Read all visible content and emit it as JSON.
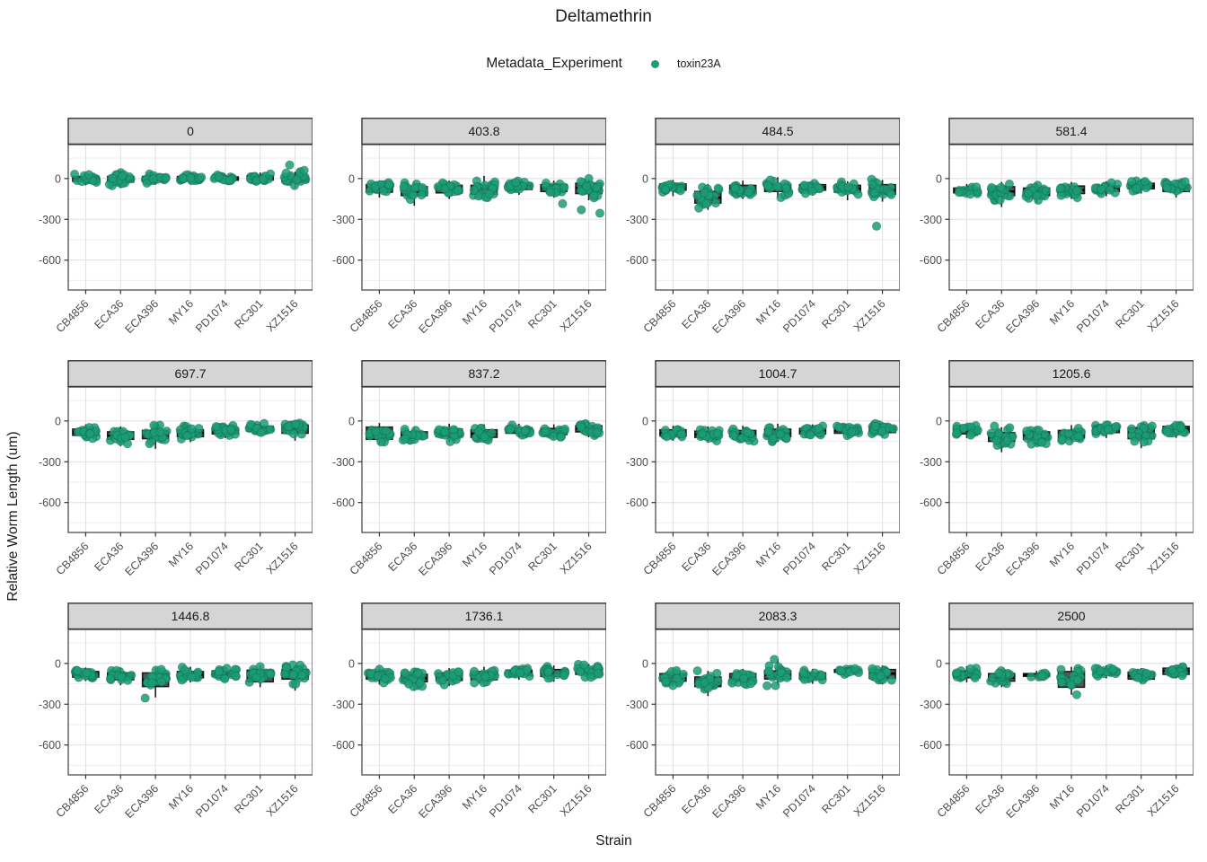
{
  "chart_data": {
    "type": "boxplot-jitter-facets",
    "title": "Deltamethrin",
    "xlabel": "Strain",
    "ylabel": "Relative Worm Length (um)",
    "legend": {
      "title": "Metadata_Experiment",
      "items": [
        {
          "label": "toxin23A",
          "color": "#1b9e77"
        }
      ]
    },
    "strains": [
      "CB4856",
      "ECA36",
      "ECA396",
      "MY16",
      "PD1074",
      "RC301",
      "XZ1516"
    ],
    "yticks": [
      0,
      -300,
      -600
    ],
    "y_minor_step": 150,
    "ylim": [
      250,
      -820
    ],
    "grid": "on",
    "legend_position": "top",
    "group_format": "[median, q1, q3, whisker_lo, whisker_hi, n_points]",
    "facets": [
      {
        "label": "0",
        "groups": [
          [
            0,
            -20,
            15,
            -50,
            35,
            22
          ],
          [
            -5,
            -25,
            15,
            -70,
            40,
            22
          ],
          [
            0,
            -15,
            15,
            -45,
            35,
            20
          ],
          [
            0,
            -15,
            15,
            -40,
            40,
            22
          ],
          [
            0,
            -12,
            12,
            -35,
            30,
            20
          ],
          [
            5,
            -10,
            20,
            -30,
            45,
            20
          ],
          [
            -5,
            -25,
            10,
            -70,
            50,
            22
          ]
        ],
        "outliers": {
          "6": [
            100,
            60
          ]
        }
      },
      {
        "label": "403.8",
        "groups": [
          [
            -70,
            -100,
            -45,
            -140,
            -15,
            20
          ],
          [
            -95,
            -125,
            -60,
            -200,
            -25,
            20
          ],
          [
            -75,
            -105,
            -50,
            -150,
            -15,
            20
          ],
          [
            -80,
            -115,
            -50,
            -160,
            20,
            22
          ],
          [
            -55,
            -80,
            -35,
            -120,
            -10,
            18
          ],
          [
            -70,
            -95,
            -45,
            -140,
            -15,
            20
          ],
          [
            -70,
            -110,
            -35,
            -160,
            -5,
            22
          ]
        ],
        "outliers": {
          "5": [
            -185
          ],
          "6": [
            -230,
            -255
          ]
        }
      },
      {
        "label": "484.5",
        "groups": [
          [
            -60,
            -85,
            -40,
            -130,
            -10,
            20
          ],
          [
            -140,
            -180,
            -95,
            -230,
            -40,
            22
          ],
          [
            -80,
            -105,
            -50,
            -150,
            -15,
            22
          ],
          [
            -70,
            -95,
            -45,
            -140,
            10,
            20
          ],
          [
            -65,
            -85,
            -45,
            -125,
            -15,
            20
          ],
          [
            -75,
            -100,
            -50,
            -160,
            -20,
            18
          ],
          [
            -80,
            -115,
            -45,
            -170,
            -10,
            22
          ]
        ],
        "outliers": {
          "6": [
            -350
          ]
        }
      },
      {
        "label": "581.4",
        "groups": [
          [
            -90,
            -105,
            -70,
            -130,
            -40,
            18
          ],
          [
            -95,
            -125,
            -60,
            -210,
            -25,
            22
          ],
          [
            -100,
            -125,
            -70,
            -180,
            -30,
            22
          ],
          [
            -85,
            -110,
            -55,
            -150,
            -25,
            20
          ],
          [
            -75,
            -95,
            -55,
            -130,
            -20,
            20
          ],
          [
            -55,
            -75,
            -35,
            -110,
            -5,
            20
          ],
          [
            -70,
            -95,
            -45,
            -140,
            -10,
            20
          ]
        ],
        "outliers": {}
      },
      {
        "label": "697.7",
        "groups": [
          [
            -85,
            -105,
            -60,
            -140,
            -25,
            20
          ],
          [
            -110,
            -135,
            -80,
            -185,
            -40,
            20
          ],
          [
            -100,
            -130,
            -70,
            -205,
            -30,
            22
          ],
          [
            -90,
            -115,
            -65,
            -155,
            -30,
            20
          ],
          [
            -75,
            -95,
            -55,
            -125,
            -20,
            20
          ],
          [
            -55,
            -75,
            -40,
            -110,
            -10,
            18
          ],
          [
            -55,
            -90,
            -30,
            -145,
            -5,
            22
          ]
        ],
        "outliers": {}
      },
      {
        "label": "837.2",
        "groups": [
          [
            -85,
            -135,
            -45,
            -175,
            -15,
            20
          ],
          [
            -105,
            -125,
            -80,
            -165,
            -45,
            18
          ],
          [
            -90,
            -115,
            -60,
            -155,
            -20,
            20
          ],
          [
            -95,
            -120,
            -65,
            -160,
            -25,
            20
          ],
          [
            -70,
            -90,
            -50,
            -120,
            -20,
            18
          ],
          [
            -80,
            -100,
            -55,
            -135,
            -25,
            20
          ],
          [
            -55,
            -80,
            -35,
            -120,
            -5,
            20
          ]
        ],
        "outliers": {}
      },
      {
        "label": "1004.7",
        "groups": [
          [
            -90,
            -110,
            -65,
            -145,
            -35,
            20
          ],
          [
            -100,
            -120,
            -75,
            -160,
            -40,
            20
          ],
          [
            -95,
            -115,
            -70,
            -150,
            -35,
            20
          ],
          [
            -90,
            -115,
            -60,
            -155,
            -20,
            22
          ],
          [
            -75,
            -95,
            -55,
            -125,
            -25,
            20
          ],
          [
            -70,
            -90,
            -50,
            -125,
            -20,
            20
          ],
          [
            -60,
            -85,
            -40,
            -120,
            -10,
            22
          ]
        ],
        "outliers": {}
      },
      {
        "label": "1205.6",
        "groups": [
          [
            -75,
            -95,
            -55,
            -125,
            -25,
            18
          ],
          [
            -120,
            -150,
            -85,
            -230,
            -45,
            22
          ],
          [
            -110,
            -135,
            -80,
            -175,
            -40,
            20
          ],
          [
            -100,
            -125,
            -70,
            -160,
            -30,
            20
          ],
          [
            -60,
            -85,
            -35,
            -125,
            0,
            20
          ],
          [
            -90,
            -130,
            -50,
            -200,
            -15,
            20
          ],
          [
            -60,
            -85,
            -40,
            -125,
            -10,
            20
          ]
        ],
        "outliers": {}
      },
      {
        "label": "1446.8",
        "groups": [
          [
            -80,
            -100,
            -60,
            -130,
            -30,
            20
          ],
          [
            -95,
            -120,
            -70,
            -160,
            -35,
            20
          ],
          [
            -120,
            -170,
            -70,
            -250,
            -30,
            22
          ],
          [
            -85,
            -105,
            -60,
            -140,
            -25,
            20
          ],
          [
            -75,
            -95,
            -55,
            -120,
            -25,
            18
          ],
          [
            -85,
            -135,
            -50,
            -175,
            -15,
            22
          ],
          [
            -70,
            -115,
            -45,
            -200,
            -10,
            22
          ]
        ],
        "outliers": {
          "2": [
            -255
          ]
        }
      },
      {
        "label": "1736.1",
        "groups": [
          [
            -90,
            -115,
            -60,
            -155,
            -25,
            22
          ],
          [
            -110,
            -135,
            -80,
            -200,
            -40,
            22
          ],
          [
            -100,
            -125,
            -70,
            -165,
            -35,
            20
          ],
          [
            -90,
            -120,
            -60,
            -165,
            -25,
            22
          ],
          [
            -70,
            -90,
            -50,
            -120,
            -20,
            18
          ],
          [
            -70,
            -95,
            -45,
            -135,
            -15,
            20
          ],
          [
            -55,
            -80,
            -35,
            -115,
            -5,
            22
          ]
        ],
        "outliers": {}
      },
      {
        "label": "2083.3",
        "groups": [
          [
            -105,
            -130,
            -75,
            -170,
            -40,
            20
          ],
          [
            -140,
            -170,
            -100,
            -240,
            -55,
            22
          ],
          [
            -105,
            -130,
            -75,
            -170,
            -40,
            20
          ],
          [
            -85,
            -115,
            -55,
            -160,
            30,
            20
          ],
          [
            -95,
            -115,
            -70,
            -150,
            -40,
            18
          ],
          [
            -55,
            -65,
            -45,
            -90,
            -25,
            16
          ],
          [
            -75,
            -110,
            -45,
            -155,
            -15,
            20
          ]
        ],
        "outliers": {
          "3": [
            30
          ]
        }
      },
      {
        "label": "2500",
        "groups": [
          [
            -80,
            -105,
            -55,
            -140,
            -20,
            20
          ],
          [
            -105,
            -130,
            -75,
            -175,
            -40,
            22
          ],
          [
            -85,
            -95,
            -75,
            -110,
            -55,
            8
          ],
          [
            -110,
            -175,
            -60,
            -230,
            -25,
            20
          ],
          [
            -60,
            -80,
            -45,
            -110,
            -15,
            18
          ],
          [
            -90,
            -115,
            -65,
            -150,
            -35,
            20
          ],
          [
            -55,
            -80,
            -35,
            -110,
            -10,
            22
          ]
        ],
        "outliers": {
          "3": [
            -230
          ]
        }
      }
    ],
    "colors": {
      "point": "#1b9e77",
      "point_edge": "#14634a",
      "box_fill": "#565656",
      "box_stroke": "#1c1c1c",
      "median": "#000000",
      "strip_bg": "#d5d5d5",
      "strip_border": "#333333",
      "panel_border": "#4d4d4d",
      "grid_major": "#e2e2e2",
      "grid_minor": "#eeeeee",
      "tick_text": "#4d4d4d",
      "strip_text": "#1a1a1a"
    }
  }
}
